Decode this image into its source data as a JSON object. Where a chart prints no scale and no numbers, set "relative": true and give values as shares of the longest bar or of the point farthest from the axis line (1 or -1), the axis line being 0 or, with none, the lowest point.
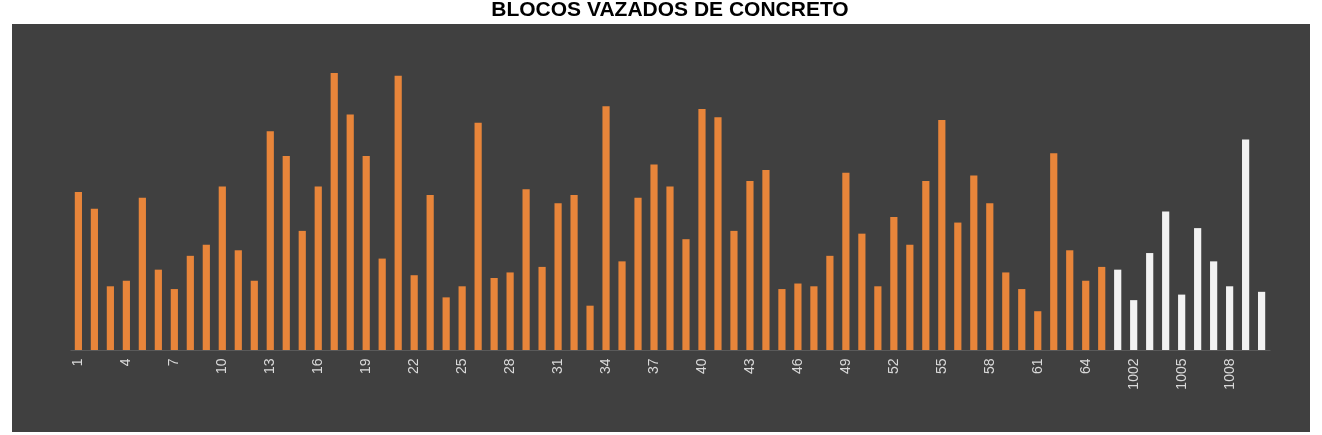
{
  "chart_data": {
    "type": "bar",
    "title": "BLOCOS VAZADOS DE CONCRETO",
    "relative": true,
    "categories": [
      "1",
      null,
      null,
      "4",
      null,
      null,
      "7",
      null,
      null,
      "10",
      null,
      null,
      "13",
      null,
      null,
      "16",
      null,
      null,
      "19",
      null,
      null,
      "22",
      null,
      null,
      "25",
      null,
      null,
      "28",
      null,
      null,
      "31",
      null,
      null,
      "34",
      null,
      null,
      "37",
      null,
      null,
      "40",
      null,
      null,
      "43",
      null,
      null,
      "46",
      null,
      null,
      "49",
      null,
      null,
      "52",
      null,
      null,
      "55",
      null,
      null,
      "58",
      null,
      null,
      "61",
      null,
      null,
      "64",
      null,
      null,
      "1002",
      null,
      null,
      "1005",
      null,
      null,
      "1008",
      null,
      null
    ],
    "values": [
      0.57,
      0.51,
      0.23,
      0.25,
      0.55,
      0.29,
      0.22,
      0.34,
      0.38,
      0.59,
      0.36,
      0.25,
      0.79,
      0.7,
      0.43,
      0.59,
      1,
      0.85,
      0.7,
      0.33,
      0.99,
      0.27,
      0.56,
      0.19,
      0.23,
      0.82,
      0.26,
      0.28,
      0.58,
      0.3,
      0.53,
      0.56,
      0.16,
      0.88,
      0.32,
      0.55,
      0.67,
      0.59,
      0.4,
      0.87,
      0.84,
      0.43,
      0.61,
      0.65,
      0.22,
      0.24,
      0.23,
      0.34,
      0.64,
      0.42,
      0.23,
      0.48,
      0.38,
      0.61,
      0.83,
      0.46,
      0.63,
      0.53,
      0.28,
      0.22,
      0.14,
      0.71,
      0.36,
      0.25,
      0.3,
      0.29,
      0.18,
      0.35,
      0.5,
      0.2,
      0.44,
      0.32,
      0.23,
      0.76,
      0.21
    ],
    "colors": [
      "#e8853a",
      "#e8853a",
      "#e8853a",
      "#e8853a",
      "#e8853a",
      "#e8853a",
      "#e8853a",
      "#e8853a",
      "#e8853a",
      "#e8853a",
      "#e8853a",
      "#e8853a",
      "#e8853a",
      "#e8853a",
      "#e8853a",
      "#e8853a",
      "#e8853a",
      "#e8853a",
      "#e8853a",
      "#e8853a",
      "#e8853a",
      "#e8853a",
      "#e8853a",
      "#e8853a",
      "#e8853a",
      "#e8853a",
      "#e8853a",
      "#e8853a",
      "#e8853a",
      "#e8853a",
      "#e8853a",
      "#e8853a",
      "#e8853a",
      "#e8853a",
      "#e8853a",
      "#e8853a",
      "#e8853a",
      "#e8853a",
      "#e8853a",
      "#e8853a",
      "#e8853a",
      "#e8853a",
      "#e8853a",
      "#e8853a",
      "#e8853a",
      "#e8853a",
      "#e8853a",
      "#e8853a",
      "#e8853a",
      "#e8853a",
      "#e8853a",
      "#e8853a",
      "#e8853a",
      "#e8853a",
      "#e8853a",
      "#e8853a",
      "#e8853a",
      "#e8853a",
      "#e8853a",
      "#e8853a",
      "#e8853a",
      "#e8853a",
      "#e8853a",
      "#e8853a",
      "#e8853a",
      "#f2f2f2",
      "#f2f2f2",
      "#f2f2f2",
      "#f2f2f2",
      "#f2f2f2",
      "#f2f2f2",
      "#f2f2f2",
      "#f2f2f2",
      "#f2f2f2",
      "#f2f2f2"
    ]
  }
}
